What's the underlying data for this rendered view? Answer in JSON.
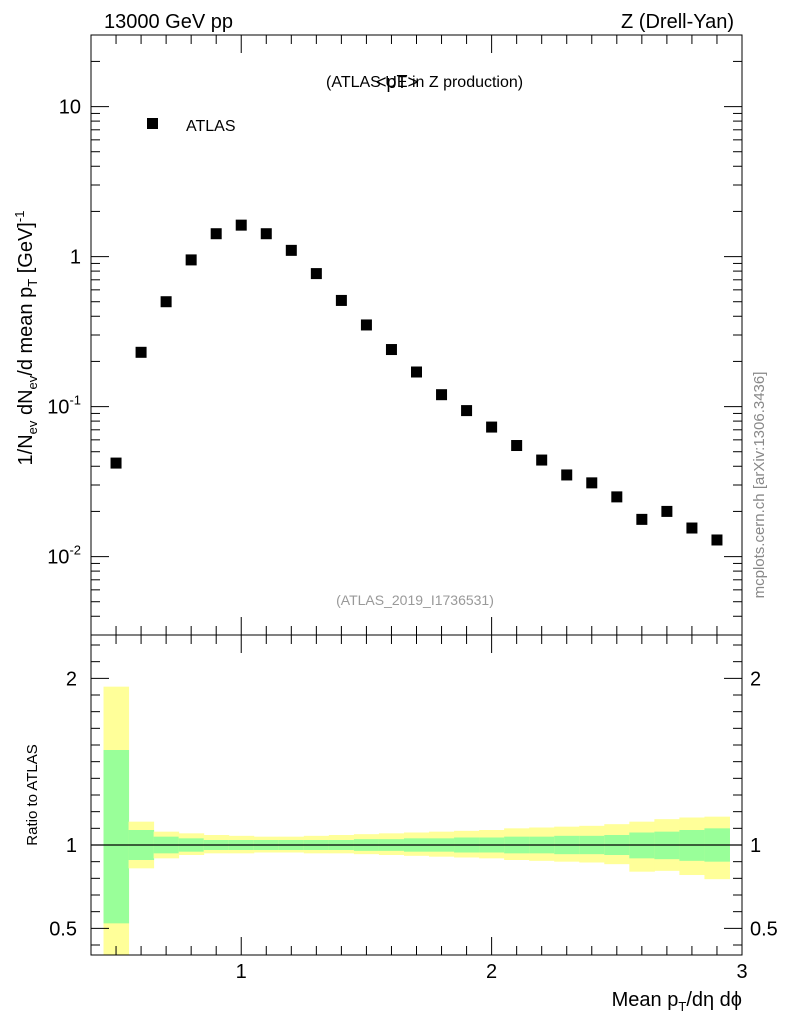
{
  "header": {
    "left_label": "13000 GeV pp",
    "right_label": "Z (Drell-Yan)"
  },
  "watermark": "mcplots.cern.ch [arXiv:1306.3436]",
  "analysis_id": "(ATLAS_2019_I1736531)",
  "colors": {
    "band_outer": "#ffff99",
    "band_inner": "#99ff99",
    "marker": "#000000",
    "id_text": "#999999"
  },
  "chart_data": [
    {
      "type": "scatter",
      "title_main": "<pT>",
      "title_sub": "(ATLAS UE in Z production)",
      "ylabel_parts": {
        "a": "1/N",
        "a_sub": "ev",
        "b": " dN",
        "b_sub": "ev",
        "c": "/d mean p",
        "c_sub": "T",
        "d": " [GeV]",
        "d_sup": "-1"
      },
      "yscale": "log",
      "ylim": [
        0.003,
        30
      ],
      "xlim": [
        0.4,
        3.0
      ],
      "legend_placement": "top-left",
      "series": [
        {
          "name": "ATLAS",
          "marker": "square",
          "x": [
            0.5,
            0.6,
            0.7,
            0.8,
            0.9,
            1.0,
            1.1,
            1.2,
            1.3,
            1.4,
            1.5,
            1.6,
            1.7,
            1.8,
            1.9,
            2.0,
            2.1,
            2.2,
            2.3,
            2.4,
            2.5,
            2.6,
            2.7,
            2.8,
            2.9
          ],
          "y": [
            0.042,
            0.23,
            0.5,
            0.95,
            1.42,
            1.62,
            1.42,
            1.1,
            0.77,
            0.51,
            0.35,
            0.24,
            0.17,
            0.12,
            0.094,
            0.073,
            0.055,
            0.044,
            0.035,
            0.031,
            0.025,
            0.0177,
            0.02,
            0.0155,
            0.0129
          ]
        }
      ],
      "yticks_major": [
        {
          "v": 0.01,
          "base": "10",
          "exp": "-2"
        },
        {
          "v": 0.1,
          "base": "10",
          "exp": "-1"
        },
        {
          "v": 1,
          "base": "1",
          "exp": ""
        },
        {
          "v": 10,
          "base": "10",
          "exp": ""
        }
      ]
    },
    {
      "type": "area",
      "ylabel": "Ratio to ATLAS",
      "ylim": [
        0.34,
        2.26
      ],
      "xlim": [
        0.4,
        3.0
      ],
      "reference_line": 1,
      "yticks": [
        {
          "v": 0.5,
          "label": "0.5"
        },
        {
          "v": 1,
          "label": "1"
        },
        {
          "v": 2,
          "label": "2"
        }
      ],
      "xticks": [
        {
          "v": 1,
          "label": "1"
        },
        {
          "v": 2,
          "label": "2"
        },
        {
          "v": 3,
          "label": "3"
        }
      ],
      "xlabel_parts": {
        "a": "Mean p",
        "a_sub": "T",
        "b": "/dη dϕ"
      },
      "bins": [
        {
          "lo": 0.45,
          "hi": 0.55,
          "outer": [
            0.3,
            1.95
          ],
          "inner": [
            0.53,
            1.57
          ]
        },
        {
          "lo": 0.55,
          "hi": 0.65,
          "outer": [
            0.86,
            1.14
          ],
          "inner": [
            0.91,
            1.09
          ]
        },
        {
          "lo": 0.65,
          "hi": 0.75,
          "outer": [
            0.92,
            1.08
          ],
          "inner": [
            0.95,
            1.05
          ]
        },
        {
          "lo": 0.75,
          "hi": 0.85,
          "outer": [
            0.94,
            1.07
          ],
          "inner": [
            0.96,
            1.04
          ]
        },
        {
          "lo": 0.85,
          "hi": 0.95,
          "outer": [
            0.95,
            1.06
          ],
          "inner": [
            0.97,
            1.03
          ]
        },
        {
          "lo": 0.95,
          "hi": 1.05,
          "outer": [
            0.95,
            1.055
          ],
          "inner": [
            0.97,
            1.03
          ]
        },
        {
          "lo": 1.05,
          "hi": 1.15,
          "outer": [
            0.955,
            1.05
          ],
          "inner": [
            0.97,
            1.03
          ]
        },
        {
          "lo": 1.15,
          "hi": 1.25,
          "outer": [
            0.955,
            1.05
          ],
          "inner": [
            0.97,
            1.03
          ]
        },
        {
          "lo": 1.25,
          "hi": 1.35,
          "outer": [
            0.95,
            1.055
          ],
          "inner": [
            0.97,
            1.03
          ]
        },
        {
          "lo": 1.35,
          "hi": 1.45,
          "outer": [
            0.95,
            1.06
          ],
          "inner": [
            0.97,
            1.03
          ]
        },
        {
          "lo": 1.45,
          "hi": 1.55,
          "outer": [
            0.945,
            1.065
          ],
          "inner": [
            0.965,
            1.035
          ]
        },
        {
          "lo": 1.55,
          "hi": 1.65,
          "outer": [
            0.94,
            1.07
          ],
          "inner": [
            0.965,
            1.035
          ]
        },
        {
          "lo": 1.65,
          "hi": 1.75,
          "outer": [
            0.935,
            1.075
          ],
          "inner": [
            0.96,
            1.04
          ]
        },
        {
          "lo": 1.75,
          "hi": 1.85,
          "outer": [
            0.93,
            1.08
          ],
          "inner": [
            0.96,
            1.04
          ]
        },
        {
          "lo": 1.85,
          "hi": 1.95,
          "outer": [
            0.925,
            1.085
          ],
          "inner": [
            0.955,
            1.045
          ]
        },
        {
          "lo": 1.95,
          "hi": 2.05,
          "outer": [
            0.92,
            1.09
          ],
          "inner": [
            0.955,
            1.045
          ]
        },
        {
          "lo": 2.05,
          "hi": 2.15,
          "outer": [
            0.91,
            1.1
          ],
          "inner": [
            0.95,
            1.05
          ]
        },
        {
          "lo": 2.15,
          "hi": 2.25,
          "outer": [
            0.905,
            1.105
          ],
          "inner": [
            0.95,
            1.05
          ]
        },
        {
          "lo": 2.25,
          "hi": 2.35,
          "outer": [
            0.9,
            1.11
          ],
          "inner": [
            0.945,
            1.055
          ]
        },
        {
          "lo": 2.35,
          "hi": 2.45,
          "outer": [
            0.895,
            1.115
          ],
          "inner": [
            0.945,
            1.055
          ]
        },
        {
          "lo": 2.45,
          "hi": 2.55,
          "outer": [
            0.885,
            1.125
          ],
          "inner": [
            0.94,
            1.06
          ]
        },
        {
          "lo": 2.55,
          "hi": 2.65,
          "outer": [
            0.84,
            1.14
          ],
          "inner": [
            0.92,
            1.075
          ]
        },
        {
          "lo": 2.65,
          "hi": 2.75,
          "outer": [
            0.845,
            1.155
          ],
          "inner": [
            0.915,
            1.08
          ]
        },
        {
          "lo": 2.75,
          "hi": 2.85,
          "outer": [
            0.82,
            1.165
          ],
          "inner": [
            0.905,
            1.09
          ]
        },
        {
          "lo": 2.85,
          "hi": 2.95,
          "outer": [
            0.795,
            1.17
          ],
          "inner": [
            0.9,
            1.1
          ]
        }
      ]
    }
  ]
}
